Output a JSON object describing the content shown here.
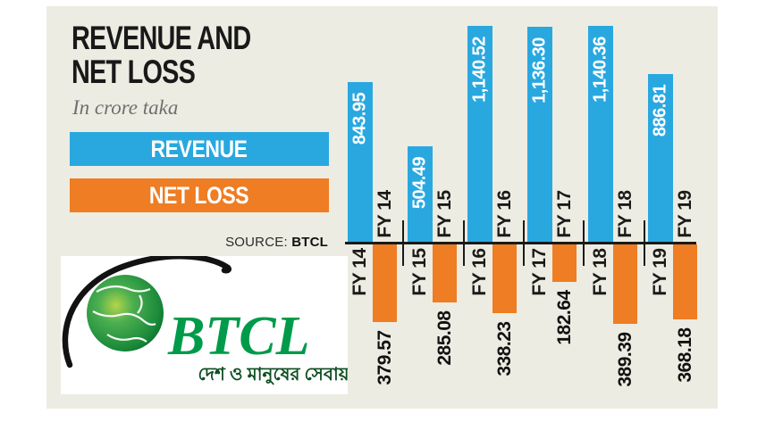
{
  "header": {
    "title_line1": "REVENUE AND",
    "title_line2": "NET LOSS",
    "subtitle": "In crore taka"
  },
  "legend": {
    "revenue_label": "REVENUE",
    "net_loss_label": "NET LOSS"
  },
  "source": {
    "prefix": "SOURCE:",
    "name": "BTCL"
  },
  "logo": {
    "wordmark": "BTCL",
    "tagline": "দেশ ও মানুষের সেবায়"
  },
  "colors": {
    "revenue_blue": "#29a8e0",
    "net_loss_orange": "#ee7d23",
    "panel_bg": "#edece2",
    "axis_black": "#1a1a1a",
    "logo_green": "#009b4a"
  },
  "chart_data": {
    "type": "bar",
    "title": "REVENUE AND NET LOSS",
    "unit": "In crore taka",
    "orientation": "vertical, net loss drawn downward below a shared axis",
    "categories": [
      "FY 14",
      "FY 15",
      "FY 16",
      "FY 17",
      "FY 18",
      "FY 19"
    ],
    "series": [
      {
        "name": "REVENUE",
        "color": "#29a8e0",
        "values": [
          843.95,
          504.49,
          1140.52,
          1136.3,
          1140.36,
          886.81
        ],
        "labels": [
          "843.95",
          "504.49",
          "1,140.52",
          "1,136.30",
          "1,140.36",
          "886.81"
        ]
      },
      {
        "name": "NET LOSS",
        "color": "#ee7d23",
        "values": [
          379.57,
          285.08,
          338.23,
          182.64,
          389.39,
          368.18
        ],
        "labels": [
          "379.57",
          "285.08",
          "338.23",
          "182.64",
          "389.39",
          "368.18"
        ]
      }
    ],
    "legend_position": "top-left panel",
    "grid": false,
    "source": "BTCL"
  }
}
